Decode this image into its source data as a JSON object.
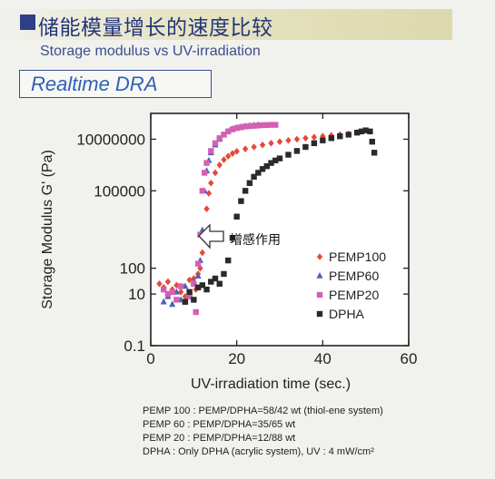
{
  "header": {
    "title": "储能模量增长的速度比较",
    "subtitle": "Storage modulus vs UV-irradiation",
    "method_label": "Realtime DRA"
  },
  "notes": [
    "PEMP 100 : PEMP/DPHA=58/42 wt (thiol-ene system)",
    "PEMP 60 : PEMP/DPHA=35/65 wt",
    "PEMP 20 : PEMP/DPHA=12/88 wt",
    "DPHA : Only DPHA (acrylic system), UV : 4 mW/cm²"
  ],
  "colors": {
    "title_square": "#2c3f88",
    "title_text": "#23357c",
    "method_text": "#2e62b4",
    "PEMP100": "#e8483a",
    "PEMP60": "#4a63b6",
    "PEMP20": "#d55fb2",
    "DPHA": "#2a2a2a"
  },
  "chart_data": {
    "type": "scatter",
    "xlabel": "UV-irradiation time (sec.)",
    "ylabel": "Storage Modulus G' (Pa)",
    "xlim": [
      0,
      60
    ],
    "ylim": [
      0.1,
      100000000
    ],
    "y_scale": "log",
    "x_ticks": [
      "0",
      "20",
      "40",
      "60"
    ],
    "y_ticks": [
      "0.1",
      "10",
      "100",
      "100000",
      "10000000"
    ],
    "legend_position": "lower-right",
    "annotation": {
      "text": "增感作用",
      "x": 12,
      "y": 300
    },
    "series": [
      {
        "name": "PEMP100",
        "marker": "diamond",
        "points": [
          [
            2,
            25
          ],
          [
            3,
            18
          ],
          [
            4,
            30
          ],
          [
            5,
            15
          ],
          [
            6,
            22
          ],
          [
            7,
            12
          ],
          [
            8,
            8
          ],
          [
            9,
            35
          ],
          [
            10,
            40
          ],
          [
            10.5,
            15
          ],
          [
            11,
            60
          ],
          [
            11.5,
            100
          ],
          [
            12,
            400
          ],
          [
            12.5,
            2000
          ],
          [
            13,
            20000
          ],
          [
            13.5,
            80000
          ],
          [
            14,
            200000
          ],
          [
            15,
            500000
          ],
          [
            16,
            1000000
          ],
          [
            17,
            1600000
          ],
          [
            18,
            2200000
          ],
          [
            19,
            2800000
          ],
          [
            20,
            3400000
          ],
          [
            22,
            4200000
          ],
          [
            24,
            5000000
          ],
          [
            26,
            6000000
          ],
          [
            28,
            7000000
          ],
          [
            30,
            8000000
          ],
          [
            32,
            9000000
          ],
          [
            34,
            10000000
          ],
          [
            36,
            11000000
          ],
          [
            38,
            12000000
          ],
          [
            40,
            13000000
          ],
          [
            42,
            14000000
          ],
          [
            44,
            15000000
          ],
          [
            46,
            16000000
          ]
        ]
      },
      {
        "name": "PEMP60",
        "marker": "triangle",
        "points": [
          [
            3,
            5
          ],
          [
            4,
            8
          ],
          [
            5,
            4
          ],
          [
            6,
            12
          ],
          [
            7,
            6
          ],
          [
            8,
            20
          ],
          [
            9,
            10
          ],
          [
            10,
            30
          ],
          [
            11,
            50
          ],
          [
            11.5,
            200
          ],
          [
            12,
            3000
          ],
          [
            12.5,
            100000
          ],
          [
            13,
            600000
          ],
          [
            13.5,
            1500000
          ],
          [
            14,
            3000000
          ],
          [
            15,
            6000000
          ],
          [
            16,
            10000000
          ],
          [
            17,
            15000000
          ],
          [
            18,
            20000000
          ],
          [
            19,
            25000000
          ],
          [
            20,
            28000000
          ],
          [
            21,
            30000000
          ],
          [
            22,
            32000000
          ],
          [
            23,
            34000000
          ],
          [
            24,
            35000000
          ],
          [
            25,
            36000000
          ]
        ]
      },
      {
        "name": "PEMP20",
        "marker": "square",
        "points": [
          [
            3,
            15
          ],
          [
            4,
            10
          ],
          [
            5,
            12
          ],
          [
            6,
            6
          ],
          [
            7,
            20
          ],
          [
            8,
            5
          ],
          [
            9,
            8
          ],
          [
            10,
            25
          ],
          [
            10.5,
            2
          ],
          [
            11,
            150
          ],
          [
            11.5,
            2000
          ],
          [
            12,
            100000
          ],
          [
            12.5,
            500000
          ],
          [
            13,
            1200000
          ],
          [
            14,
            3500000
          ],
          [
            15,
            7000000
          ],
          [
            16,
            11000000
          ],
          [
            17,
            15000000
          ],
          [
            18,
            20000000
          ],
          [
            19,
            24000000
          ],
          [
            20,
            27000000
          ],
          [
            21,
            29000000
          ],
          [
            22,
            31000000
          ],
          [
            23,
            32000000
          ],
          [
            24,
            33000000
          ],
          [
            25,
            34000000
          ],
          [
            26,
            35000000
          ],
          [
            27,
            35500000
          ],
          [
            28,
            36000000
          ],
          [
            29,
            36000000
          ]
        ]
      },
      {
        "name": "DPHA",
        "marker": "square",
        "points": [
          [
            8,
            5
          ],
          [
            9,
            12
          ],
          [
            10,
            6
          ],
          [
            11,
            18
          ],
          [
            12,
            22
          ],
          [
            13,
            15
          ],
          [
            14,
            30
          ],
          [
            15,
            40
          ],
          [
            16,
            25
          ],
          [
            17,
            60
          ],
          [
            18,
            200
          ],
          [
            19,
            1500
          ],
          [
            20,
            10000
          ],
          [
            21,
            40000
          ],
          [
            22,
            100000
          ],
          [
            23,
            200000
          ],
          [
            24,
            350000
          ],
          [
            25,
            500000
          ],
          [
            26,
            700000
          ],
          [
            27,
            900000
          ],
          [
            28,
            1200000
          ],
          [
            29,
            1500000
          ],
          [
            30,
            1800000
          ],
          [
            32,
            2500000
          ],
          [
            34,
            3500000
          ],
          [
            36,
            5000000
          ],
          [
            38,
            7000000
          ],
          [
            40,
            9000000
          ],
          [
            42,
            11000000
          ],
          [
            44,
            13000000
          ],
          [
            46,
            15000000
          ],
          [
            48,
            18000000
          ],
          [
            49,
            20000000
          ],
          [
            50,
            22000000
          ],
          [
            51,
            20000000
          ],
          [
            51.5,
            8000000
          ],
          [
            52,
            3000000
          ]
        ]
      }
    ]
  }
}
